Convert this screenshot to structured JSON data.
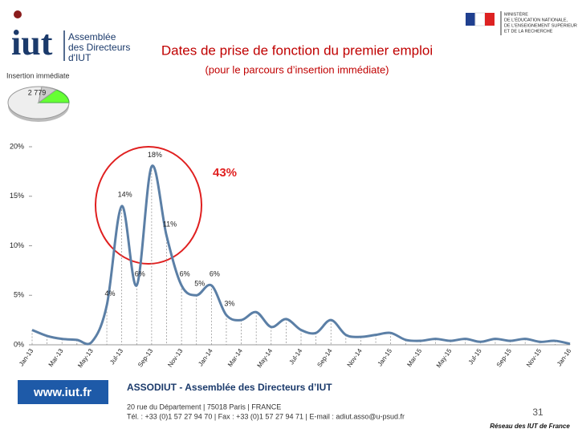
{
  "header": {
    "logo_name": "iut",
    "logo_org": [
      "Assemblée",
      "des Directeurs",
      "d'IUT"
    ],
    "ministry": [
      "MINISTÈRE",
      "DE L'ÉDUCATION NATIONALE,",
      "DE L'ENSEIGNEMENT SUPÉRIEUR",
      "ET DE LA RECHERCHE"
    ],
    "section": "Insertion immédiate",
    "sample_size": "2 779"
  },
  "chart_data": {
    "type": "line",
    "title": "Dates de prise de fonction du premier emploi",
    "subtitle": "(pour le parcours d’insertion immédiate)",
    "annotation": "43%",
    "categories": [
      "Jan-13",
      null,
      "Mar-13",
      null,
      "May-13",
      null,
      "Jul-13",
      null,
      "Sep-13",
      null,
      "Nov-13",
      null,
      "Jan-14",
      null,
      "Mar-14",
      null,
      "May-14",
      null,
      "Jul-14",
      null,
      "Sep-14",
      null,
      "Nov-14",
      null,
      "Jan-15",
      null,
      "Mar-15",
      null,
      "May-15",
      null,
      "Jul-15",
      null,
      "Sep-15",
      null,
      "Nov-15",
      null,
      "Jan-16"
    ],
    "series": [
      {
        "name": null,
        "color": "#5b7fa6",
        "values": [
          1.5,
          0.9,
          0.6,
          0.5,
          0.3,
          4,
          14,
          6,
          18,
          11,
          6,
          5,
          6,
          3,
          2.5,
          3.3,
          1.8,
          2.6,
          1.5,
          1.2,
          2.5,
          1.0,
          0.8,
          1.0,
          1.2,
          0.5,
          0.4,
          0.6,
          0.4,
          0.6,
          0.3,
          0.6,
          0.4,
          0.6,
          0.3,
          0.4,
          0.1
        ],
        "value_labels": [
          null,
          null,
          null,
          null,
          null,
          "4%",
          "14%",
          "6%",
          "18%",
          "11%",
          "6%",
          "5%",
          "6%",
          "3%",
          null,
          null,
          null,
          null,
          null,
          null,
          null,
          null,
          null,
          null,
          null,
          null,
          null,
          null,
          null,
          null,
          null,
          null,
          null,
          null,
          null,
          null,
          null
        ]
      }
    ],
    "ylim": [
      0,
      20
    ],
    "yticks": [
      {
        "value": 0,
        "label": "0%"
      },
      {
        "value": 5,
        "label": "5%"
      },
      {
        "value": 10,
        "label": "10%"
      },
      {
        "value": 15,
        "label": "15%"
      },
      {
        "value": 20,
        "label": "20%"
      }
    ],
    "grid": false
  },
  "footer": {
    "website": "www.iut.fr",
    "org": "ASSODIUT - Assemblée des Directeurs d’IUT",
    "address": "20 rue du Département | 75018 Paris | FRANCE",
    "contact": "Tél. : +33 (0)1 57 27 94 70 | Fax : +33 (0)1 57 27 94 71 | E-mail : adiut.asso@u-psud.fr",
    "page": "31",
    "network": "Réseau des IUT de France"
  }
}
